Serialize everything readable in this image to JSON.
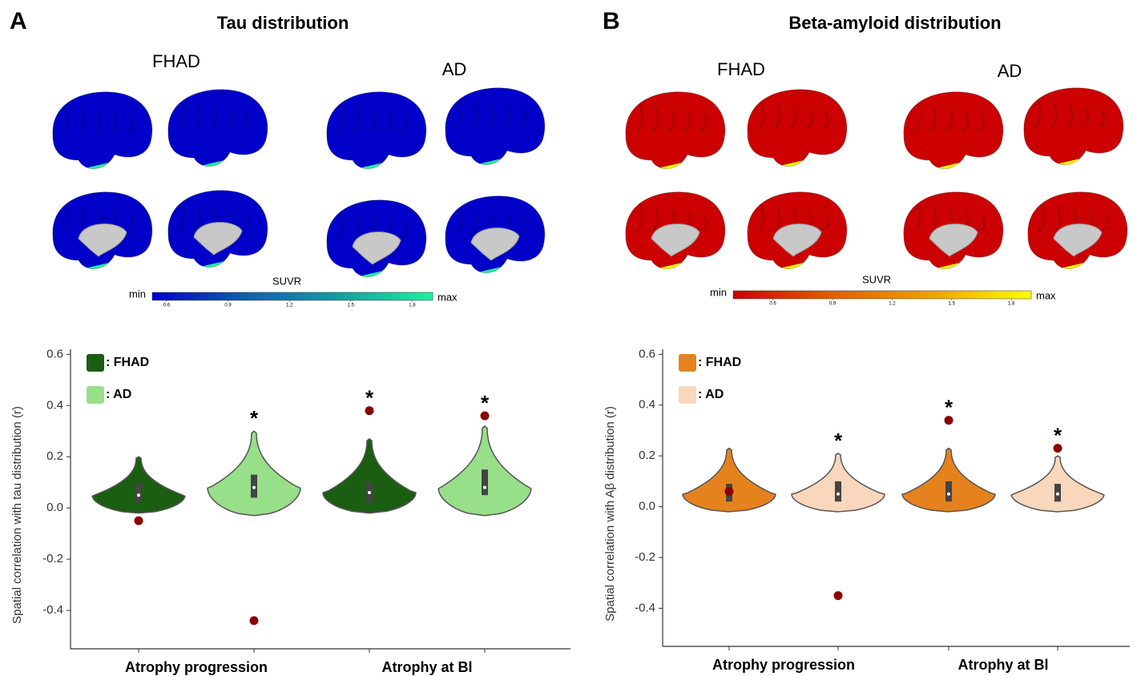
{
  "chart_data": [
    {
      "type": "violin",
      "panel": "A",
      "title": "Tau distribution",
      "brain_groups": [
        "FHAD",
        "AD"
      ],
      "colorbar": {
        "label": "SUVR",
        "min_label": "min",
        "max_label": "max",
        "lim": [
          0.53,
          1.9
        ],
        "ticks": [
          0.6,
          0.9,
          1.2,
          1.5,
          1.8
        ],
        "colors": [
          "#0000c8",
          "#1060b0",
          "#10a0a0",
          "#20f0a0"
        ]
      },
      "ylabel": "Spatial correlation with tau distribution (r)",
      "categories": [
        "Atrophy progression",
        "Atrophy at Bl"
      ],
      "ylim": [
        -0.55,
        0.62
      ],
      "yticks": [
        -0.4,
        -0.2,
        {
          "value": 0,
          "label": "0.0"
        },
        0.2,
        0.4,
        0.6
      ],
      "series": [
        {
          "name": ": FHAD",
          "color": "#1a5e12",
          "values": [
            -0.05,
            0.38
          ],
          "min": [
            -0.02,
            -0.02
          ],
          "q1": [
            0.02,
            0.02
          ],
          "median": [
            0.05,
            0.06
          ],
          "q3": [
            0.1,
            0.1
          ],
          "max": [
            0.2,
            0.27
          ],
          "significance": [
            null,
            "*"
          ]
        },
        {
          "name": ": AD",
          "color": "#98df8a",
          "values": [
            -0.44,
            0.36
          ],
          "min": [
            -0.03,
            -0.03
          ],
          "q1": [
            0.04,
            0.05
          ],
          "median": [
            0.08,
            0.08
          ],
          "q3": [
            0.13,
            0.15
          ],
          "max": [
            0.3,
            0.32
          ],
          "significance": [
            "*",
            "*"
          ]
        }
      ]
    },
    {
      "type": "violin",
      "panel": "B",
      "title": "Beta-amyloid distribution",
      "brain_groups": [
        "FHAD",
        "AD"
      ],
      "colorbar": {
        "label": "SUVR",
        "min_label": "min",
        "max_label": "max",
        "lim": [
          0.4,
          1.9
        ],
        "ticks": [
          0.6,
          0.9,
          1.2,
          1.5,
          1.8
        ],
        "colors": [
          "#cc0000",
          "#e06000",
          "#f0a000",
          "#ffff00"
        ]
      },
      "ylabel": "Spatial correlation with Aβ distribution (r)",
      "categories": [
        "Atrophy progression",
        "Atrophy at Bl"
      ],
      "ylim": [
        -0.55,
        0.62
      ],
      "yticks": [
        -0.4,
        -0.2,
        {
          "value": 0,
          "label": "0.0"
        },
        0.2,
        0.4,
        0.6
      ],
      "series": [
        {
          "name": ": FHAD",
          "color": "#e6821e",
          "values": [
            0.06,
            0.34
          ],
          "min": [
            -0.02,
            -0.02
          ],
          "q1": [
            0.02,
            0.02
          ],
          "median": [
            0.05,
            0.05
          ],
          "q3": [
            0.09,
            0.1
          ],
          "max": [
            0.23,
            0.23
          ],
          "significance": [
            null,
            "*"
          ]
        },
        {
          "name": ": AD",
          "color": "#f8d7bc",
          "values": [
            -0.35,
            0.23
          ],
          "min": [
            -0.02,
            -0.02
          ],
          "q1": [
            0.02,
            0.02
          ],
          "median": [
            0.05,
            0.05
          ],
          "q3": [
            0.1,
            0.09
          ],
          "max": [
            0.21,
            0.2
          ],
          "significance": [
            "*",
            "*"
          ]
        }
      ]
    }
  ]
}
